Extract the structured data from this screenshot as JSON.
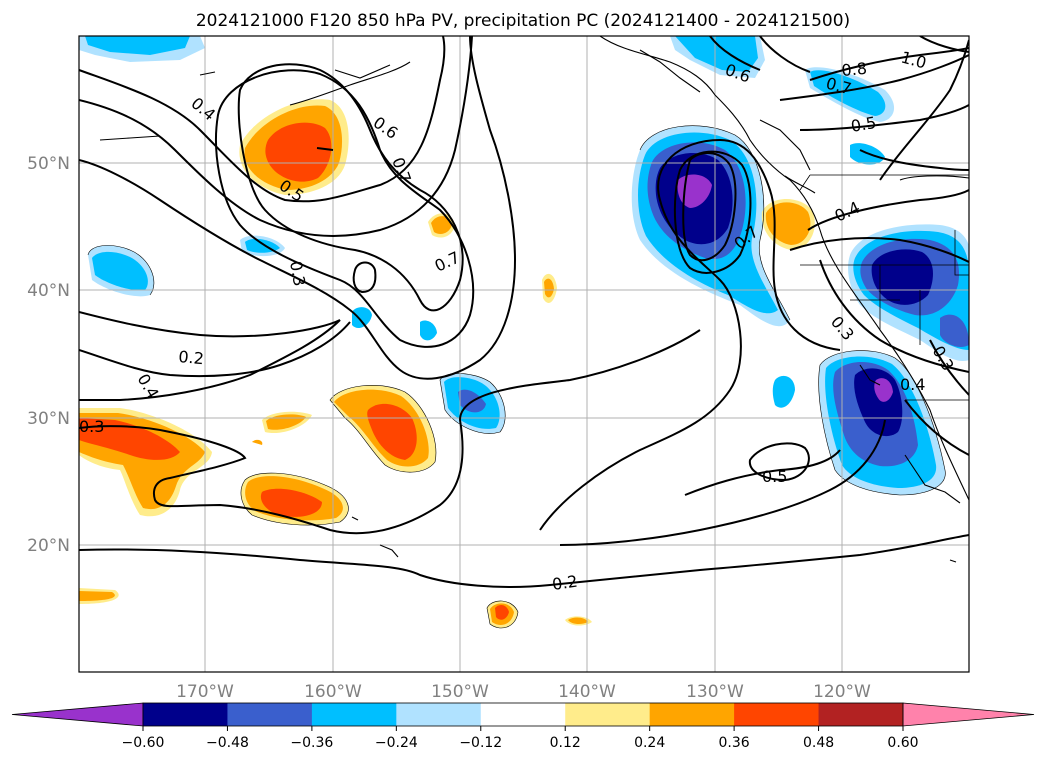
{
  "title": "2024121000 F120 850 hPa PV, precipitation PC (2024121400 - 2024121500)",
  "map": {
    "lon_labels": [
      "170°W",
      "160°W",
      "150°W",
      "140°W",
      "130°W",
      "120°W"
    ],
    "lat_labels": [
      "50°N",
      "40°N",
      "30°N",
      "20°N"
    ],
    "grid": true
  },
  "pv_contour_labels": [
    "0.4",
    "0.6",
    "0.7",
    "0.5",
    "0.3",
    "0.7",
    "0.2",
    "0.4",
    "0.3",
    "0.6",
    "0.7",
    "0.8",
    "1.0",
    "0.5",
    "0.4",
    "0.7",
    "0.3",
    "0.3",
    "0.4",
    "0.5",
    "0.2"
  ],
  "colorbar": {
    "tick_labels": [
      "−0.60",
      "−0.48",
      "−0.36",
      "−0.24",
      "−0.12",
      "0.12",
      "0.24",
      "0.36",
      "0.48",
      "0.60"
    ],
    "colors": [
      "#9932cc",
      "#00008b",
      "#3a5fcd",
      "#00bfff",
      "#b0e2ff",
      "#ffffff",
      "#ffec8b",
      "#ffa500",
      "#ff4500",
      "#b22222",
      "#ff82ab"
    ],
    "extend": "both"
  }
}
